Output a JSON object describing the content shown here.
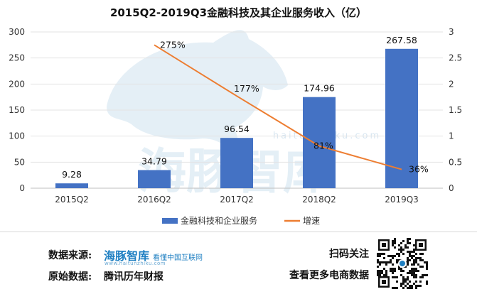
{
  "chart_data": {
    "type": "bar+line",
    "title": "2015Q2-2019Q3金融科技及其企业服务收入（亿）",
    "categories": [
      "2015Q2",
      "2016Q2",
      "2017Q2",
      "2018Q2",
      "2019Q3"
    ],
    "series": [
      {
        "name": "金融科技和企业服务",
        "type": "bar",
        "axis": "left",
        "values": [
          9.28,
          34.79,
          96.54,
          174.96,
          267.58
        ],
        "labels": [
          "9.28",
          "34.79",
          "96.54",
          "174.96",
          "267.58"
        ],
        "color": "#4472c4"
      },
      {
        "name": "增速",
        "type": "line",
        "axis": "right",
        "values": [
          null,
          2.75,
          1.77,
          0.81,
          0.36
        ],
        "labels": [
          "",
          "275%",
          "177%",
          "81%",
          "36%"
        ],
        "color": "#ed7d31"
      }
    ],
    "y_left": {
      "min": 0,
      "max": 300,
      "ticks": [
        0,
        50,
        100,
        150,
        200,
        250,
        300
      ]
    },
    "y_right": {
      "min": 0,
      "max": 3,
      "ticks": [
        "0",
        "0.5",
        "1",
        "1.5",
        "2",
        "2.5",
        "3"
      ]
    },
    "grid": true,
    "legend": "bottom"
  },
  "watermark": {
    "brand": "海豚智库",
    "url": "haitunzhiku.com"
  },
  "footer": {
    "source_label": "数据来源:",
    "source_brand": "海豚智库",
    "source_tagline": "看懂中国互联网",
    "source_sub": "www.haitunzhiku.com",
    "origin_label": "原始数据:",
    "origin_value": "腾讯历年财报",
    "scan_text": "扫码关注",
    "more_text": "查看更多电商数据"
  }
}
